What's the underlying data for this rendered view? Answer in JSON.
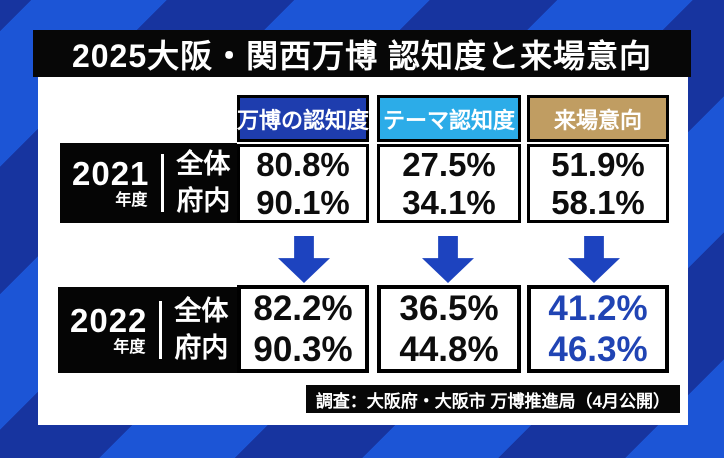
{
  "title": "2025大阪・関西万博 認知度と来場意向",
  "table": {
    "columns": [
      {
        "label": "万博の認知度",
        "color": "#1e3dae"
      },
      {
        "label": "テーマ認知度",
        "color": "#2cace8"
      },
      {
        "label": "来場意向",
        "color": "#c09d62"
      }
    ],
    "row_labels": {
      "overall": "全体",
      "prefecture": "府内"
    },
    "rows": [
      {
        "year": "2021",
        "year_suffix": "年度",
        "values": [
          [
            "80.8%",
            "90.1%"
          ],
          [
            "27.5%",
            "34.1%"
          ],
          [
            "51.9%",
            "58.1%"
          ]
        ]
      },
      {
        "year": "2022",
        "year_suffix": "年度",
        "values": [
          [
            "82.2%",
            "90.3%"
          ],
          [
            "36.5%",
            "44.8%"
          ],
          [
            "41.2%",
            "46.3%"
          ]
        ]
      }
    ]
  },
  "footer": {
    "source": "調査：大阪府・大阪市 万博推進局（4月公開）"
  },
  "colors": {
    "arrow": "#1d43bf",
    "highlight_value": "#2044b4",
    "stripe_bright": "#1c55d6",
    "stripe_dark": "#17349f",
    "title_bar_bg": "#070707"
  },
  "chart_data": {
    "type": "table",
    "title": "2025大阪・関西万博 認知度と来場意向",
    "columns": [
      "万博の認知度",
      "テーマ認知度",
      "来場意向"
    ],
    "unit": "%",
    "rows": [
      {
        "year": "2021年度",
        "scope": "全体",
        "expo_awareness": 80.8,
        "theme_awareness": 27.5,
        "visit_intention": 51.9
      },
      {
        "year": "2021年度",
        "scope": "府内",
        "expo_awareness": 90.1,
        "theme_awareness": 34.1,
        "visit_intention": 58.1
      },
      {
        "year": "2022年度",
        "scope": "全体",
        "expo_awareness": 82.2,
        "theme_awareness": 36.5,
        "visit_intention": 41.2
      },
      {
        "year": "2022年度",
        "scope": "府内",
        "expo_awareness": 90.3,
        "theme_awareness": 44.8,
        "visit_intention": 46.3
      }
    ],
    "annotations": [
      "2021年度から2022年度へ3列とも下向き矢印（推移を示す）",
      "2022年度の来場意向の値は青色で強調"
    ],
    "source": "調査：大阪府・大阪市 万博推進局（4月公開）"
  }
}
